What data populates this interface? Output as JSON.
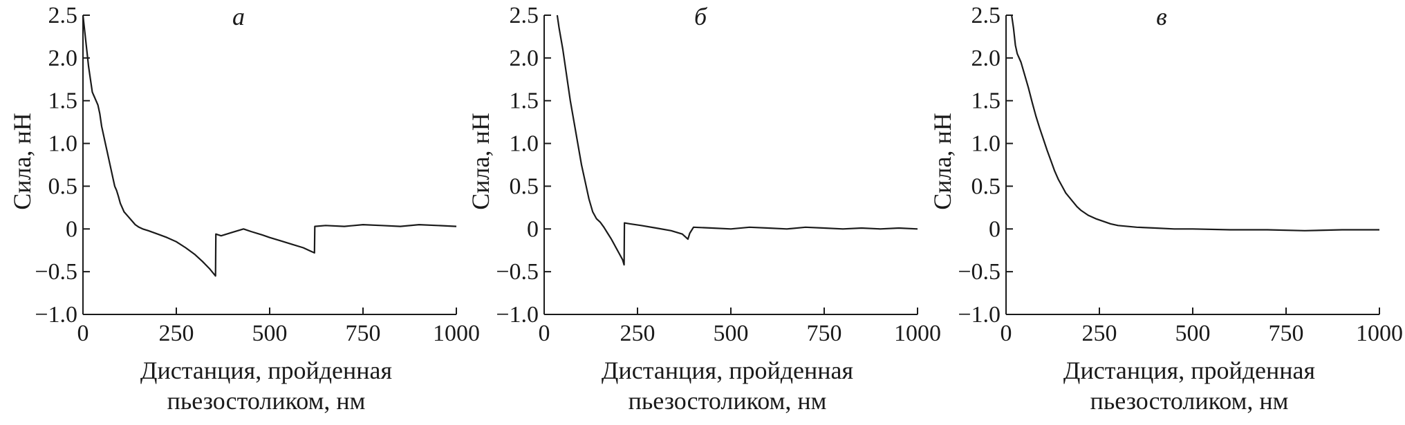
{
  "chart_data": [
    {
      "type": "line",
      "panel_label": "а",
      "xlabel_line1": "Дистанция, пройденная",
      "xlabel_line2": "пьезостоликом, нм",
      "ylabel": "Сила, нН",
      "xlim": [
        0,
        1000
      ],
      "ylim": [
        -1.0,
        2.5
      ],
      "xticks": [
        0,
        250,
        500,
        750,
        1000
      ],
      "xtick_labels": [
        "0",
        "250",
        "500",
        "750",
        "1000"
      ],
      "yticks": [
        -1.0,
        -0.5,
        0,
        0.5,
        1.0,
        1.5,
        2.0,
        2.5
      ],
      "ytick_labels": [
        "−1.0",
        "−0.5",
        "0",
        "0.5",
        "1.0",
        "1.5",
        "2.0",
        "2.5"
      ],
      "grid": false,
      "series": [
        {
          "x": [
            0,
            5,
            10,
            15,
            20,
            25,
            30,
            35,
            40,
            45,
            50,
            55,
            60,
            65,
            70,
            75,
            80,
            85,
            90,
            95,
            100,
            110,
            120,
            130,
            140,
            150,
            160,
            175,
            200,
            225,
            250,
            275,
            300,
            320,
            340,
            355,
            356,
            370,
            400,
            430,
            450,
            480,
            500,
            530,
            560,
            590,
            610,
            620,
            621,
            650,
            700,
            750,
            800,
            850,
            900,
            950,
            1000
          ],
          "y": [
            2.5,
            2.3,
            2.1,
            1.9,
            1.75,
            1.6,
            1.55,
            1.5,
            1.45,
            1.35,
            1.2,
            1.1,
            1.0,
            0.9,
            0.8,
            0.7,
            0.6,
            0.5,
            0.45,
            0.38,
            0.3,
            0.2,
            0.15,
            0.1,
            0.05,
            0.02,
            0.0,
            -0.02,
            -0.06,
            -0.1,
            -0.15,
            -0.22,
            -0.3,
            -0.38,
            -0.47,
            -0.55,
            -0.06,
            -0.08,
            -0.04,
            0.0,
            -0.03,
            -0.07,
            -0.1,
            -0.14,
            -0.18,
            -0.22,
            -0.26,
            -0.28,
            0.03,
            0.04,
            0.03,
            0.05,
            0.04,
            0.03,
            0.05,
            0.04,
            0.03
          ]
        }
      ]
    },
    {
      "type": "line",
      "panel_label": "б",
      "xlabel_line1": "Дистанция, пройденная",
      "xlabel_line2": "пьезостоликом, нм",
      "ylabel": "Сила, нН",
      "xlim": [
        0,
        1000
      ],
      "ylim": [
        -1.0,
        2.5
      ],
      "xticks": [
        0,
        250,
        500,
        750,
        1000
      ],
      "xtick_labels": [
        "0",
        "250",
        "500",
        "750",
        "1000"
      ],
      "yticks": [
        -1.0,
        -0.5,
        0,
        0.5,
        1.0,
        1.5,
        2.0,
        2.5
      ],
      "ytick_labels": [
        "−1.0",
        "−0.5",
        "0",
        "0.5",
        "1.0",
        "1.5",
        "2.0",
        "2.5"
      ],
      "grid": false,
      "series": [
        {
          "x": [
            35,
            40,
            50,
            60,
            70,
            80,
            90,
            100,
            110,
            120,
            130,
            140,
            150,
            160,
            170,
            180,
            190,
            200,
            210,
            214,
            215,
            230,
            260,
            300,
            340,
            370,
            385,
            390,
            400,
            450,
            500,
            550,
            600,
            650,
            700,
            750,
            800,
            850,
            900,
            950,
            1000
          ],
          "y": [
            2.5,
            2.35,
            2.1,
            1.8,
            1.5,
            1.25,
            1.0,
            0.75,
            0.55,
            0.35,
            0.2,
            0.12,
            0.08,
            0.02,
            -0.05,
            -0.12,
            -0.2,
            -0.28,
            -0.36,
            -0.42,
            0.07,
            0.06,
            0.04,
            0.01,
            -0.02,
            -0.06,
            -0.12,
            -0.05,
            0.02,
            0.01,
            0.0,
            0.02,
            0.01,
            0.0,
            0.02,
            0.01,
            0.0,
            0.01,
            0.0,
            0.01,
            0.0
          ]
        }
      ]
    },
    {
      "type": "line",
      "panel_label": "в",
      "xlabel_line1": "Дистанция, пройденная",
      "xlabel_line2": "пьезостоликом, нм",
      "ylabel": "Сила, нН",
      "xlim": [
        0,
        1000
      ],
      "ylim": [
        -1.0,
        2.5
      ],
      "xticks": [
        0,
        250,
        500,
        750,
        1000
      ],
      "xtick_labels": [
        "0",
        "250",
        "500",
        "750",
        "1000"
      ],
      "yticks": [
        -1.0,
        -0.5,
        0,
        0.5,
        1.0,
        1.5,
        2.0,
        2.5
      ],
      "ytick_labels": [
        "−1.0",
        "−0.5",
        "0",
        "0.5",
        "1.0",
        "1.5",
        "2.0",
        "2.5"
      ],
      "grid": false,
      "series": [
        {
          "x": [
            15,
            20,
            25,
            30,
            40,
            50,
            60,
            70,
            80,
            90,
            100,
            110,
            120,
            130,
            140,
            150,
            160,
            175,
            190,
            200,
            220,
            240,
            260,
            280,
            300,
            350,
            400,
            450,
            500,
            600,
            700,
            800,
            900,
            1000
          ],
          "y": [
            2.5,
            2.35,
            2.15,
            2.05,
            1.95,
            1.8,
            1.65,
            1.48,
            1.32,
            1.18,
            1.05,
            0.92,
            0.8,
            0.68,
            0.58,
            0.5,
            0.42,
            0.34,
            0.26,
            0.22,
            0.16,
            0.12,
            0.09,
            0.06,
            0.04,
            0.02,
            0.01,
            0.0,
            0.0,
            -0.01,
            -0.01,
            -0.02,
            -0.01,
            -0.01
          ]
        }
      ]
    }
  ]
}
